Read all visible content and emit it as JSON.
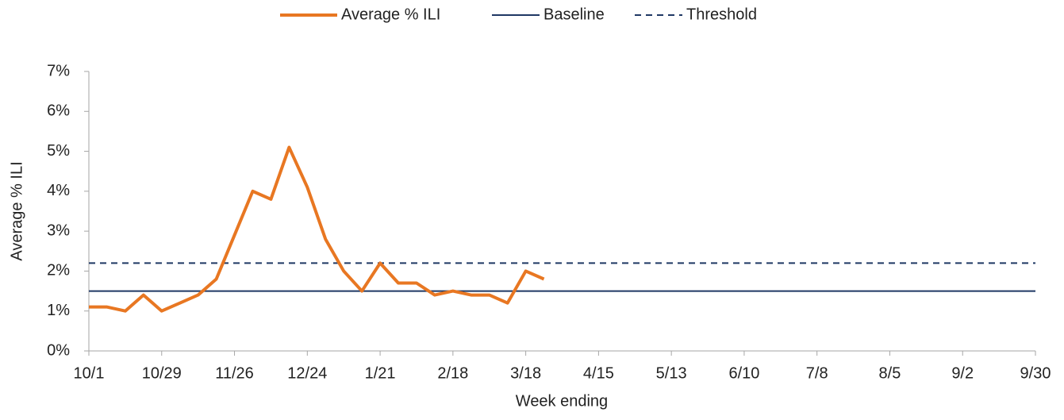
{
  "chart_data": {
    "type": "line",
    "x_label": "Week ending",
    "y_label": "Average % ILI",
    "categories": [
      "10/1",
      null,
      null,
      null,
      "10/29",
      null,
      null,
      null,
      "11/26",
      null,
      null,
      null,
      "12/24",
      null,
      null,
      null,
      "1/21",
      null,
      null,
      null,
      "2/18",
      null,
      null,
      null,
      "3/18",
      null,
      null,
      null,
      "4/15",
      null,
      null,
      null,
      "5/13",
      null,
      null,
      null,
      "6/10",
      null,
      null,
      null,
      "7/8",
      null,
      null,
      null,
      "8/5",
      null,
      null,
      null,
      "9/2",
      null,
      null,
      null,
      "9/30"
    ],
    "ylim": [
      0,
      7
    ],
    "yticks": [
      {
        "value": 0,
        "label": "0%"
      },
      {
        "value": 1,
        "label": "1%"
      },
      {
        "value": 2,
        "label": "2%"
      },
      {
        "value": 3,
        "label": "3%"
      },
      {
        "value": 4,
        "label": "4%"
      },
      {
        "value": 5,
        "label": "5%"
      },
      {
        "value": 6,
        "label": "6%"
      },
      {
        "value": 7,
        "label": "7%"
      }
    ],
    "legend": "top",
    "series": [
      {
        "name": "Average % ILI",
        "color": "#e87722",
        "dashed": false,
        "values": [
          1.1,
          1.1,
          1.0,
          1.4,
          1.0,
          1.2,
          1.4,
          1.8,
          2.9,
          4.0,
          3.8,
          5.1,
          4.1,
          2.8,
          2.0,
          1.5,
          2.2,
          1.7,
          1.7,
          1.4,
          1.5,
          1.4,
          1.4,
          1.2,
          2.0,
          1.8,
          null,
          null,
          null,
          null,
          null,
          null,
          null,
          null,
          null,
          null,
          null,
          null,
          null,
          null,
          null,
          null,
          null,
          null,
          null,
          null,
          null,
          null,
          null,
          null,
          null,
          null,
          null
        ]
      },
      {
        "name": "Baseline",
        "color": "#1f3864",
        "dashed": false,
        "values": [
          1.5,
          1.5,
          1.5,
          1.5,
          1.5,
          1.5,
          1.5,
          1.5,
          1.5,
          1.5,
          1.5,
          1.5,
          1.5,
          1.5,
          1.5,
          1.5,
          1.5,
          1.5,
          1.5,
          1.5,
          1.5,
          1.5,
          1.5,
          1.5,
          1.5,
          1.5,
          1.5,
          1.5,
          1.5,
          1.5,
          1.5,
          1.5,
          1.5,
          1.5,
          1.5,
          1.5,
          1.5,
          1.5,
          1.5,
          1.5,
          1.5,
          1.5,
          1.5,
          1.5,
          1.5,
          1.5,
          1.5,
          1.5,
          1.5,
          1.5,
          1.5,
          1.5,
          1.5
        ]
      },
      {
        "name": "Threshold",
        "color": "#1f3864",
        "dashed": true,
        "values": [
          2.2,
          2.2,
          2.2,
          2.2,
          2.2,
          2.2,
          2.2,
          2.2,
          2.2,
          2.2,
          2.2,
          2.2,
          2.2,
          2.2,
          2.2,
          2.2,
          2.2,
          2.2,
          2.2,
          2.2,
          2.2,
          2.2,
          2.2,
          2.2,
          2.2,
          2.2,
          2.2,
          2.2,
          2.2,
          2.2,
          2.2,
          2.2,
          2.2,
          2.2,
          2.2,
          2.2,
          2.2,
          2.2,
          2.2,
          2.2,
          2.2,
          2.2,
          2.2,
          2.2,
          2.2,
          2.2,
          2.2,
          2.2,
          2.2,
          2.2,
          2.2,
          2.2,
          2.2
        ]
      }
    ]
  }
}
